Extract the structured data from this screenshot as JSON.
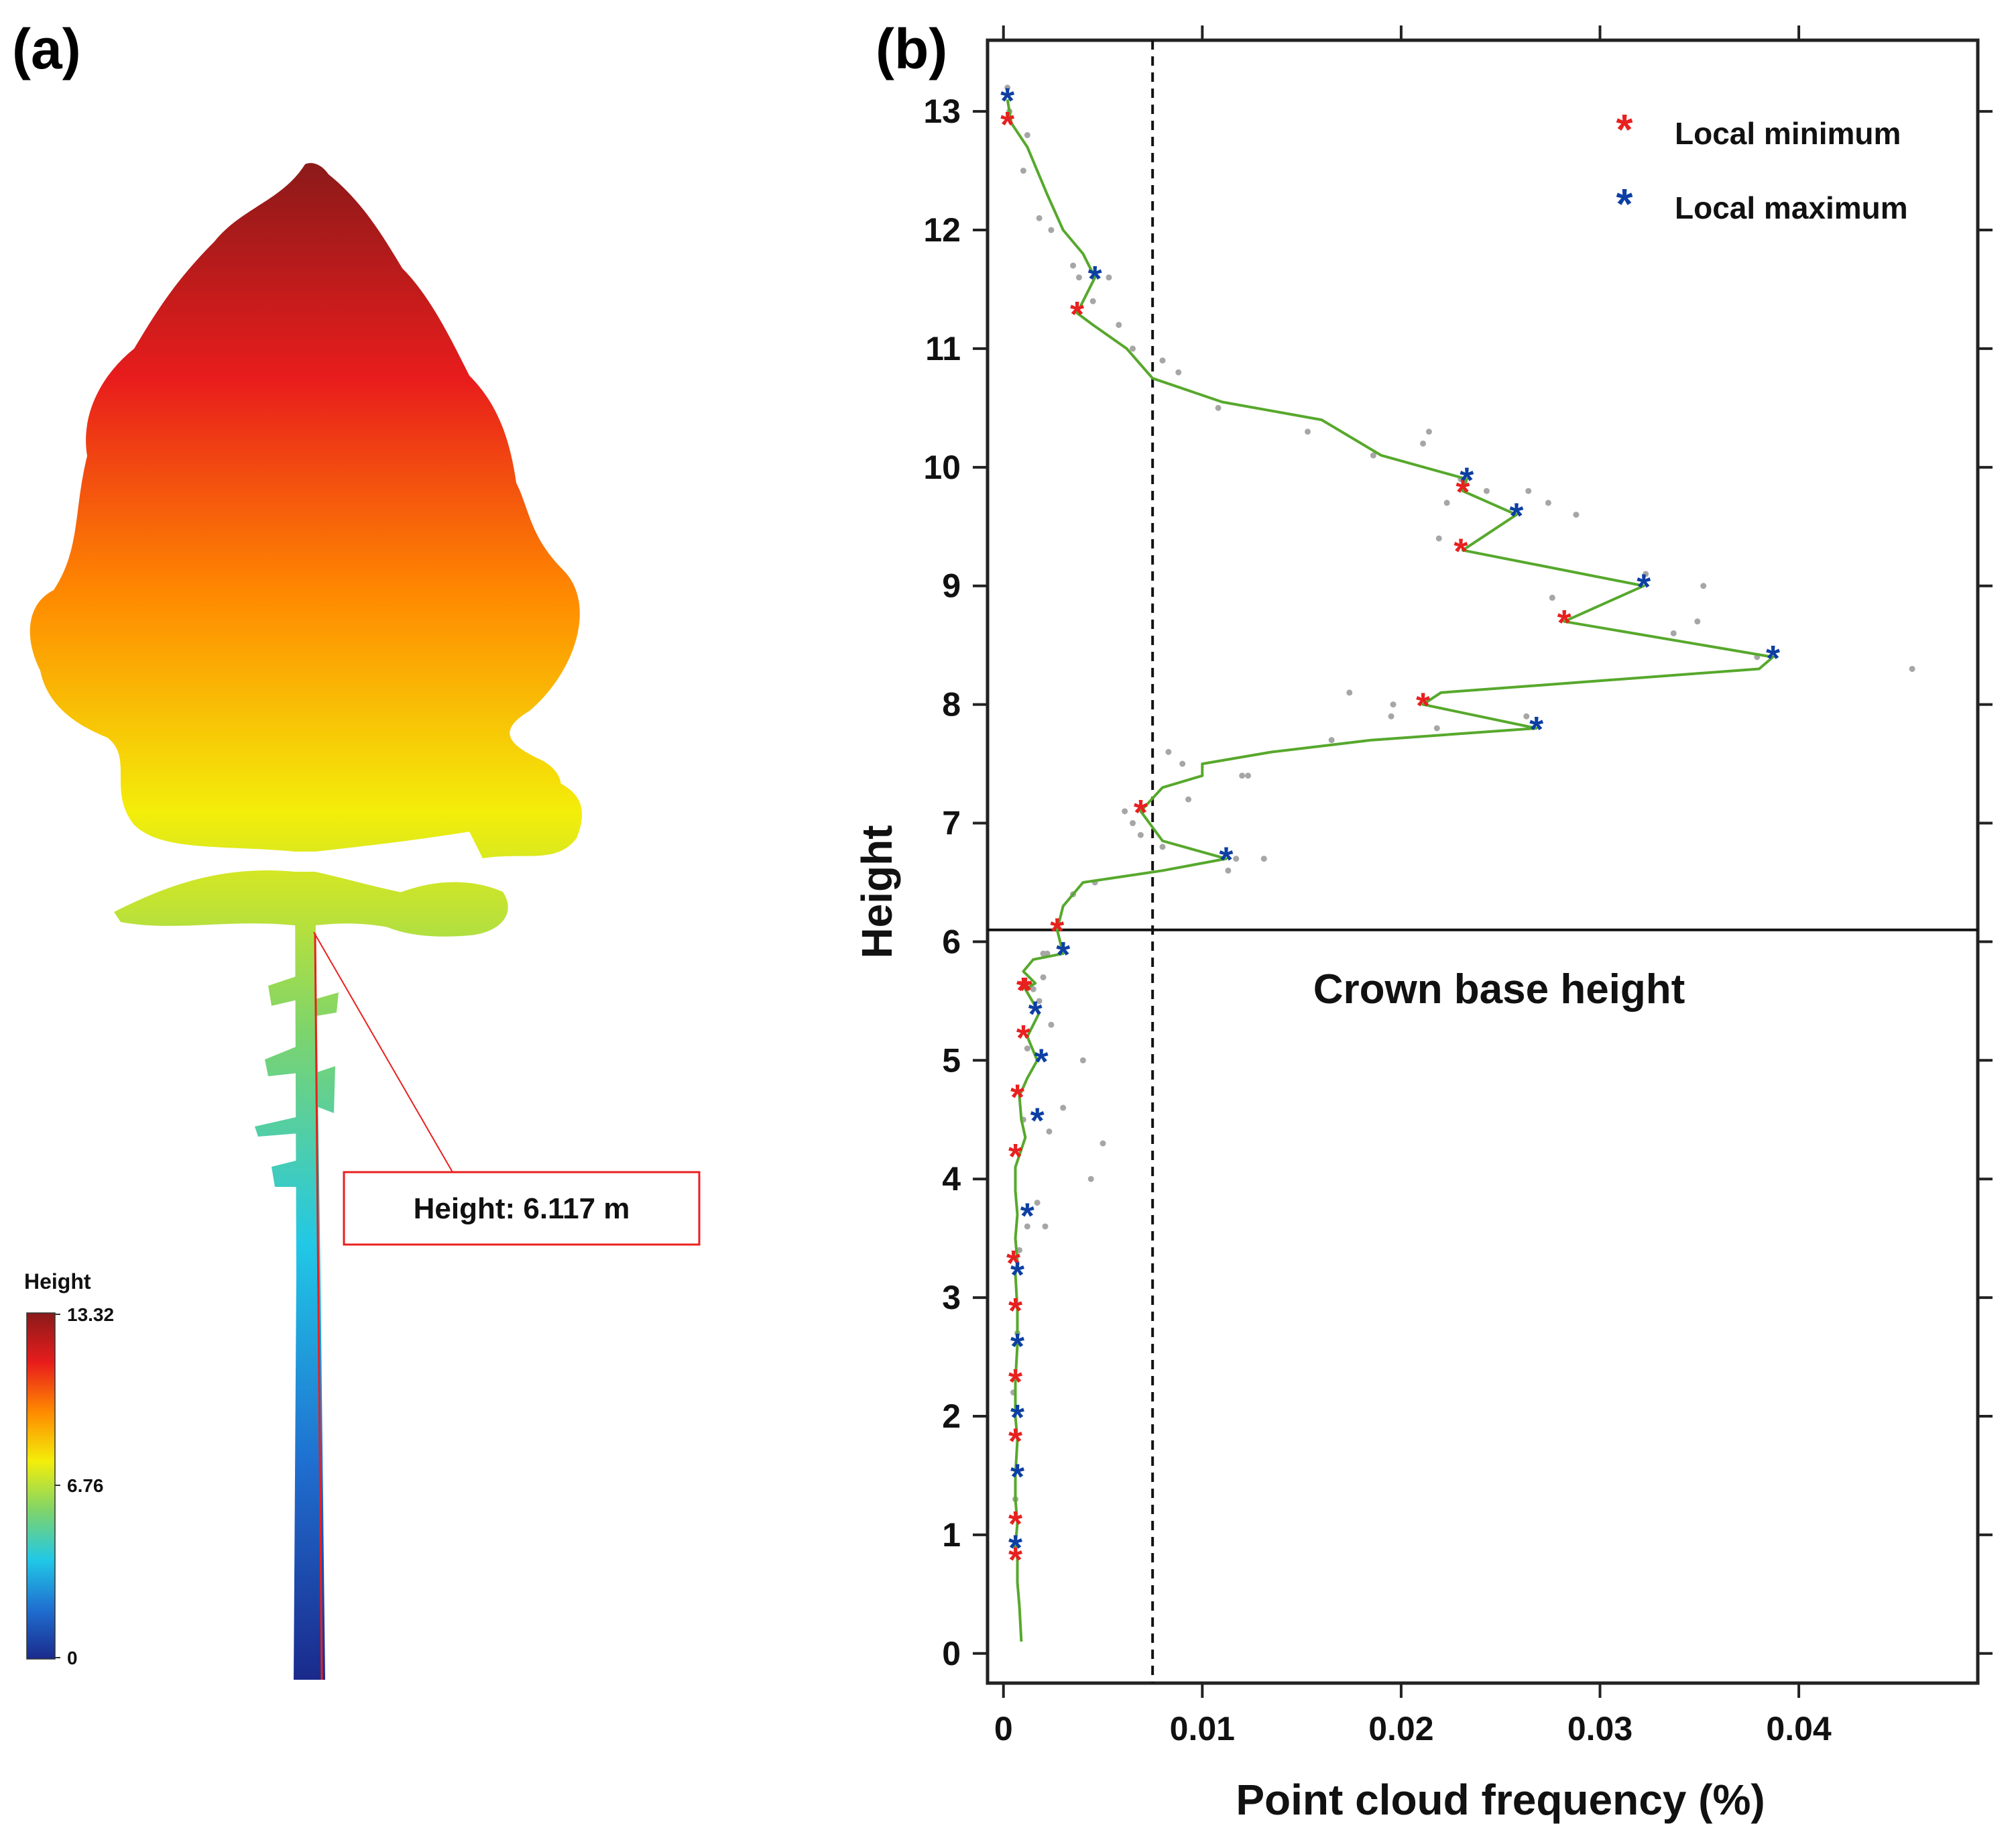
{
  "panel_a": {
    "label": "(a)",
    "colorbar": {
      "title": "Height",
      "max_label": "13.32",
      "mid_label": "6.76",
      "min_label": "0",
      "colors": [
        "#1a2a8c",
        "#1f6fd0",
        "#21c8e6",
        "#7fd46a",
        "#f3ee0a",
        "#ff8a00",
        "#e81c1c",
        "#8b1a1a"
      ]
    },
    "annotation": "Height: 6.117 m"
  },
  "panel_b": {
    "label": "(b)",
    "legend": [
      {
        "name": "Local minimum",
        "color": "#e8201f"
      },
      {
        "name": "Local maximum",
        "color": "#0d3fa3"
      }
    ],
    "crown_label": "Crown base height",
    "line_color": "#57a82c"
  },
  "chart_data": {
    "type": "line",
    "xlabel": "Point cloud frequency (%)",
    "ylabel": "Height",
    "xlim": [
      -0.0008,
      0.049
    ],
    "ylim": [
      -0.25,
      13.6
    ],
    "xticks": [
      0,
      0.01,
      0.02,
      0.03,
      0.04
    ],
    "xtick_labels": [
      "0",
      "0.01",
      "0.02",
      "0.03",
      "0.04"
    ],
    "yticks": [
      0,
      1,
      2,
      3,
      4,
      5,
      6,
      7,
      8,
      9,
      10,
      11,
      12,
      13
    ],
    "threshold_x": 0.0075,
    "crown_base_height": 6.1,
    "smoothed_curve": {
      "x": [
        0.0009,
        0.0008,
        0.0007,
        0.0007,
        0.0006,
        0.0007,
        0.0006,
        0.0006,
        0.0007,
        0.0006,
        0.0006,
        0.0007,
        0.0007,
        0.0006,
        0.0007,
        0.0006,
        0.0007,
        0.0006,
        0.0006,
        0.0006,
        0.0008,
        0.0011,
        0.0009,
        0.0008,
        0.0012,
        0.0017,
        0.0012,
        0.0018,
        0.0011,
        0.0016,
        0.001,
        0.0015,
        0.003,
        0.0027,
        0.003,
        0.004,
        0.008,
        0.0112,
        0.008,
        0.0069,
        0.008,
        0.01,
        0.01,
        0.0135,
        0.0185,
        0.0268,
        0.0211,
        0.022,
        0.038,
        0.0387,
        0.0282,
        0.0322,
        0.0231,
        0.0258,
        0.0231,
        0.0233,
        0.019,
        0.016,
        0.011,
        0.0075,
        0.0062,
        0.0045,
        0.0037,
        0.0046,
        0.004,
        0.003,
        0.0022,
        0.0012,
        0.0004,
        0.0002
      ],
      "y": [
        0.1,
        0.4,
        0.6,
        0.8,
        0.9,
        1.1,
        1.3,
        1.5,
        1.8,
        2.0,
        2.3,
        2.6,
        2.9,
        3.2,
        3.3,
        3.5,
        3.7,
        3.9,
        4.0,
        4.1,
        4.2,
        4.35,
        4.5,
        4.7,
        4.85,
        5.0,
        5.2,
        5.4,
        5.6,
        5.65,
        5.75,
        5.85,
        5.9,
        6.1,
        6.3,
        6.5,
        6.6,
        6.7,
        6.85,
        7.1,
        7.3,
        7.4,
        7.5,
        7.6,
        7.7,
        7.8,
        8.0,
        8.1,
        8.3,
        8.4,
        8.7,
        9.0,
        9.3,
        9.6,
        9.8,
        9.9,
        10.1,
        10.4,
        10.55,
        10.75,
        11.0,
        11.2,
        11.3,
        11.6,
        11.8,
        12.0,
        12.3,
        12.7,
        12.9,
        13.1
      ]
    },
    "raw_points": {
      "x": [
        0.0035,
        0.0022,
        0.002,
        0.0018,
        0.0024,
        0.004,
        0.003,
        0.0023,
        0.0044,
        0.0017,
        0.005,
        0.0008,
        0.0012,
        0.0021,
        0.0007,
        0.0005,
        0.0006,
        0.001,
        0.0012,
        0.0015,
        0.002,
        0.0046,
        0.0069,
        0.0065,
        0.008,
        0.0117,
        0.0113,
        0.0131,
        0.0093,
        0.0123,
        0.0061,
        0.0083,
        0.009,
        0.012,
        0.0174,
        0.0196,
        0.0165,
        0.0195,
        0.0263,
        0.0218,
        0.0457,
        0.0379,
        0.0337,
        0.0276,
        0.0352,
        0.0323,
        0.0349,
        0.0219,
        0.0243,
        0.0223,
        0.0274,
        0.0288,
        0.023,
        0.0264,
        0.0211,
        0.0186,
        0.0214,
        0.0153,
        0.0108,
        0.0088,
        0.008,
        0.0065,
        0.0058,
        0.0045,
        0.0038,
        0.0053,
        0.0035,
        0.0024,
        0.0018,
        0.001,
        0.0012,
        0.0003,
        0.0002
      ],
      "y": [
        6.4,
        5.9,
        5.7,
        5.5,
        5.3,
        5.0,
        4.6,
        4.4,
        4.0,
        3.8,
        4.3,
        3.4,
        3.6,
        3.6,
        2.7,
        2.2,
        1.3,
        4.5,
        5.1,
        5.6,
        5.9,
        6.5,
        6.9,
        7.0,
        6.8,
        6.7,
        6.6,
        6.7,
        7.2,
        7.4,
        7.1,
        7.6,
        7.5,
        7.4,
        8.1,
        8.0,
        7.7,
        7.9,
        7.9,
        7.8,
        8.3,
        8.4,
        8.6,
        8.9,
        9.0,
        9.1,
        8.7,
        9.4,
        9.8,
        9.7,
        9.7,
        9.6,
        9.9,
        9.8,
        10.2,
        10.1,
        10.3,
        10.3,
        10.5,
        10.8,
        10.9,
        11.0,
        11.2,
        11.4,
        11.6,
        11.6,
        11.7,
        12.0,
        12.1,
        12.5,
        12.8,
        13.0,
        13.2
      ]
    },
    "series": [
      {
        "name": "Local minimum",
        "x": [
          0.0006,
          0.0006,
          0.0006,
          0.0006,
          0.0006,
          0.0005,
          0.0006,
          0.0007,
          0.001,
          0.0011,
          0.001,
          0.0027,
          0.0069,
          0.0211,
          0.0282,
          0.023,
          0.0231,
          0.0037,
          0.0002
        ],
        "y": [
          0.8,
          1.1,
          1.8,
          2.3,
          2.9,
          3.3,
          4.2,
          4.7,
          5.2,
          5.6,
          5.6,
          6.1,
          7.1,
          8.0,
          8.7,
          9.3,
          9.8,
          11.3,
          12.9
        ]
      },
      {
        "name": "Local maximum",
        "x": [
          0.0006,
          0.0007,
          0.0007,
          0.0007,
          0.0007,
          0.0012,
          0.0017,
          0.0019,
          0.0016,
          0.003,
          0.0112,
          0.0268,
          0.0387,
          0.0322,
          0.0258,
          0.0233,
          0.0046,
          0.0002
        ],
        "y": [
          0.9,
          1.5,
          2.0,
          2.6,
          3.2,
          3.7,
          4.5,
          5.0,
          5.4,
          5.9,
          6.7,
          7.8,
          8.4,
          9.0,
          9.6,
          9.9,
          11.6,
          13.1
        ]
      }
    ]
  }
}
